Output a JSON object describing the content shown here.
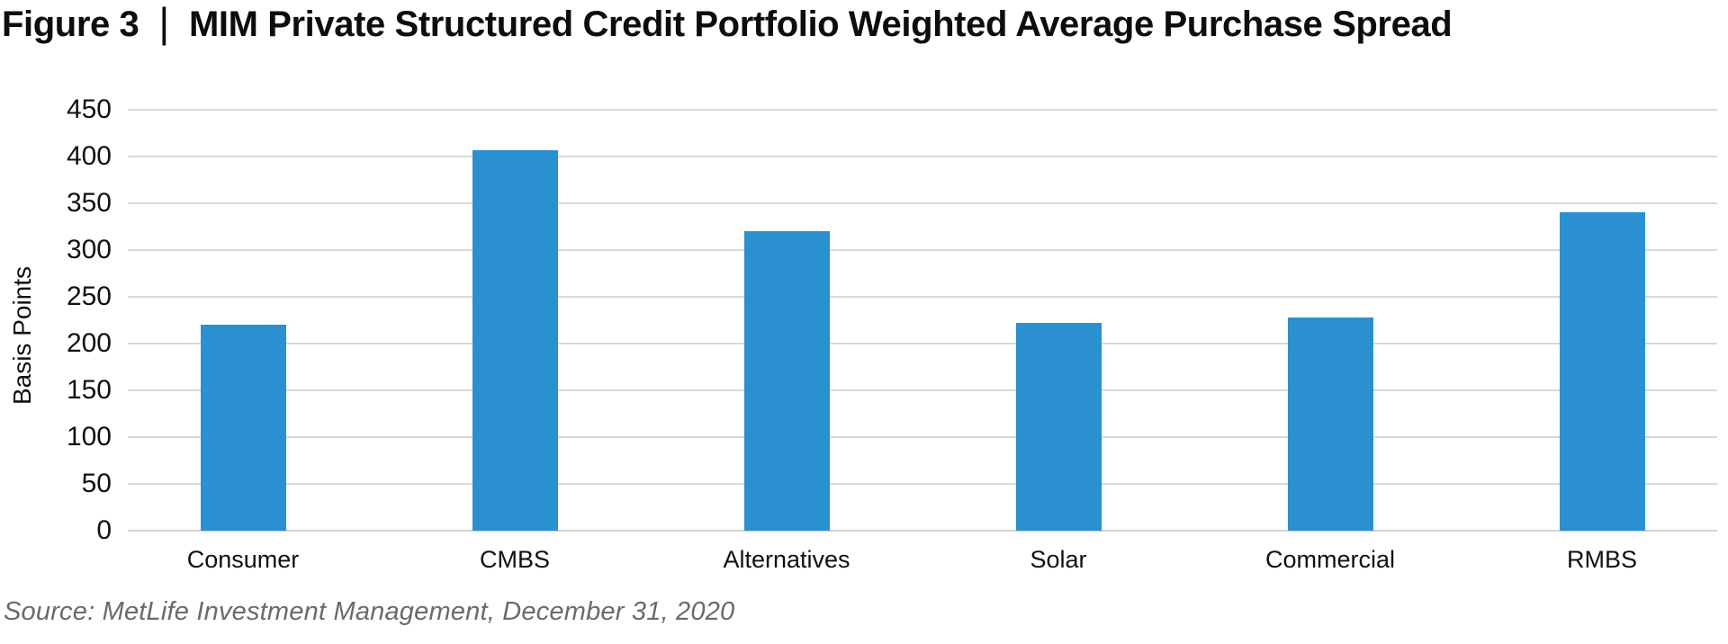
{
  "header": {
    "figure_label": "Figure 3",
    "separator": "|",
    "title": "MIM Private Structured Credit Portfolio Weighted Average Purchase Spread"
  },
  "chart_data": {
    "type": "bar",
    "title": "MIM Private Structured Credit Portfolio Weighted Average Purchase Spread",
    "categories": [
      "Consumer",
      "CMBS",
      "Alternatives",
      "Solar",
      "Commercial",
      "RMBS"
    ],
    "values": [
      220,
      407,
      320,
      222,
      228,
      340
    ],
    "xlabel": "",
    "ylabel": "Basis Points",
    "ylim": [
      0,
      450
    ],
    "yticks": [
      0,
      50,
      100,
      150,
      200,
      250,
      300,
      350,
      400,
      450
    ],
    "grid": "horizontal",
    "legend": "none",
    "bar_color": "#2a90d0"
  },
  "footer": {
    "source": "Source: MetLife Investment Management, December 31, 2020"
  },
  "colors": {
    "bar": "#2a90d0",
    "gridline": "#d9d9d9",
    "title_text": "#0d0d0d",
    "axis_text": "#111111",
    "source_text": "#6a6a6e",
    "background": "#ffffff"
  }
}
